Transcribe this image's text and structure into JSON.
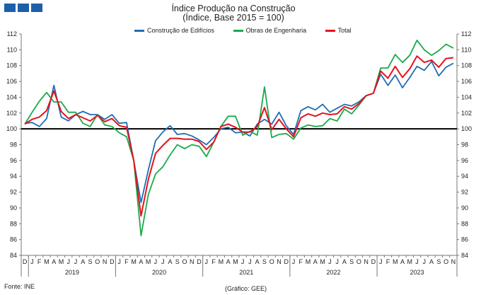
{
  "logo_color": "#1f5fa8",
  "title_line1": "Índice Produção na Construção",
  "title_line2": "(Índice, Base 2015 = 100)",
  "source": "Fonte: INE",
  "credit": "(Gráfico: GEE)",
  "chart_data": {
    "type": "line",
    "title": "Índice Produção na Construção (Índice, Base 2015 = 100)",
    "ylim": [
      84,
      112
    ],
    "yticks": [
      84,
      86,
      88,
      90,
      92,
      94,
      96,
      98,
      100,
      102,
      104,
      106,
      108,
      110,
      112
    ],
    "reference_line": 100,
    "grid": false,
    "legend_position": "top-center",
    "month_labels": [
      "D",
      "J",
      "F",
      "M",
      "A",
      "M",
      "J",
      "J",
      "A",
      "S",
      "O",
      "N",
      "D",
      "J",
      "F",
      "M",
      "A",
      "M",
      "J",
      "J",
      "A",
      "S",
      "O",
      "N",
      "D",
      "J",
      "F",
      "M",
      "A",
      "M",
      "J",
      "J",
      "A",
      "S",
      "O",
      "N",
      "D",
      "J",
      "F",
      "M",
      "A",
      "M",
      "J",
      "J",
      "A",
      "S",
      "O",
      "N",
      "D",
      "J",
      "F",
      "M",
      "A",
      "M",
      "J",
      "J",
      "A",
      "S",
      "O",
      "N"
    ],
    "years": [
      {
        "label": "2019",
        "start_index": 1,
        "end_index": 12
      },
      {
        "label": "2020",
        "start_index": 13,
        "end_index": 24
      },
      {
        "label": "2021",
        "start_index": 25,
        "end_index": 36
      },
      {
        "label": "2022",
        "start_index": 37,
        "end_index": 48
      },
      {
        "label": "2023",
        "start_index": 49,
        "end_index": 59
      }
    ],
    "series": [
      {
        "name": "Construção de Edifícios",
        "color": "#1f6db5",
        "values": [
          100.7,
          100.8,
          100.3,
          101.3,
          105.5,
          101.5,
          101.0,
          101.8,
          102.2,
          101.8,
          101.8,
          101.2,
          101.8,
          100.7,
          100.8,
          96.0,
          90.7,
          94.8,
          98.5,
          99.6,
          100.4,
          99.3,
          99.4,
          99.1,
          98.6,
          98.0,
          98.9,
          100.0,
          100.2,
          99.5,
          99.6,
          99.1,
          100.6,
          101.2,
          100.6,
          102.1,
          100.4,
          99.3,
          102.3,
          102.8,
          102.4,
          103.1,
          102.1,
          102.6,
          103.1,
          102.9,
          103.4,
          104.2,
          104.5,
          106.9,
          105.5,
          106.8,
          105.2,
          106.5,
          107.9,
          107.4,
          108.5,
          106.7,
          107.8,
          108.3
        ]
      },
      {
        "name": "Obras de Engenharia",
        "color": "#1aaa4b",
        "values": [
          100.6,
          102.1,
          103.5,
          104.6,
          103.4,
          103.4,
          102.1,
          102.1,
          100.7,
          100.3,
          101.8,
          100.5,
          100.3,
          99.5,
          99.0,
          96.0,
          86.5,
          91.7,
          94.3,
          95.2,
          96.7,
          98.0,
          97.5,
          98.0,
          97.8,
          96.5,
          98.3,
          100.3,
          101.6,
          101.6,
          99.2,
          99.7,
          99.2,
          105.3,
          98.9,
          99.3,
          99.4,
          98.7,
          100.1,
          100.5,
          100.3,
          100.4,
          101.3,
          101.0,
          102.5,
          101.9,
          103.0,
          104.2,
          104.5,
          107.7,
          107.7,
          109.4,
          108.4,
          109.3,
          111.2,
          110.0,
          109.3,
          109.9,
          110.7,
          110.2
        ]
      },
      {
        "name": "Total",
        "color": "#e3141b",
        "values": [
          100.6,
          101.2,
          101.5,
          102.3,
          104.8,
          102.2,
          101.3,
          101.8,
          101.4,
          101.0,
          101.7,
          100.9,
          101.3,
          100.4,
          100.2,
          96.0,
          89.0,
          93.6,
          96.9,
          97.9,
          98.8,
          98.8,
          98.7,
          98.7,
          98.4,
          97.4,
          98.3,
          100.3,
          100.6,
          100.2,
          99.6,
          99.6,
          100.3,
          102.7,
          99.9,
          101.2,
          100.0,
          99.0,
          101.4,
          101.9,
          101.6,
          102.0,
          101.8,
          101.9,
          102.8,
          102.5,
          103.2,
          104.2,
          104.5,
          107.3,
          106.4,
          107.9,
          106.5,
          107.6,
          109.2,
          108.4,
          108.7,
          107.8,
          108.9,
          109.0
        ]
      }
    ]
  }
}
